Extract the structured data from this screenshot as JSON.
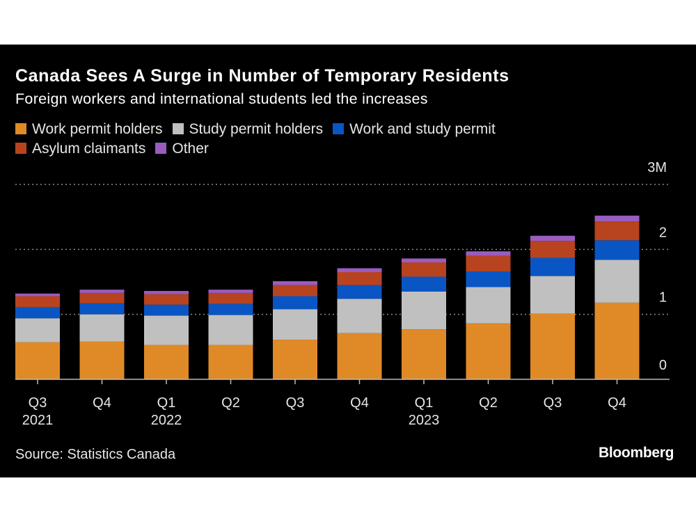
{
  "chart_data": {
    "type": "bar",
    "stacked": true,
    "title": "Canada Sees A Surge in Number of Temporary Residents",
    "subtitle": "Foreign workers and international students led the increases",
    "categories": [
      "Q3 2021",
      "Q4 2021",
      "Q1 2022",
      "Q2 2022",
      "Q3 2022",
      "Q4 2022",
      "Q1 2023",
      "Q2 2023",
      "Q3 2023",
      "Q4 2023"
    ],
    "x_tick_labels": [
      {
        "top": "Q3",
        "bottom": "2021"
      },
      {
        "top": "Q4",
        "bottom": ""
      },
      {
        "top": "Q1",
        "bottom": "2022"
      },
      {
        "top": "Q2",
        "bottom": ""
      },
      {
        "top": "Q3",
        "bottom": ""
      },
      {
        "top": "Q4",
        "bottom": ""
      },
      {
        "top": "Q1",
        "bottom": "2023"
      },
      {
        "top": "Q2",
        "bottom": ""
      },
      {
        "top": "Q3",
        "bottom": ""
      },
      {
        "top": "Q4",
        "bottom": ""
      }
    ],
    "series": [
      {
        "name": "Work permit holders",
        "color": "#df8a26",
        "values": [
          0.57,
          0.58,
          0.53,
          0.53,
          0.61,
          0.71,
          0.77,
          0.86,
          1.01,
          1.18
        ]
      },
      {
        "name": "Study permit holders",
        "color": "#c0c0c0",
        "values": [
          0.37,
          0.42,
          0.45,
          0.46,
          0.47,
          0.53,
          0.58,
          0.56,
          0.58,
          0.66
        ]
      },
      {
        "name": "Work and study permit",
        "color": "#0a55c4",
        "values": [
          0.17,
          0.17,
          0.17,
          0.17,
          0.2,
          0.21,
          0.23,
          0.24,
          0.28,
          0.3
        ]
      },
      {
        "name": "Asylum claimants",
        "color": "#b8431f",
        "values": [
          0.17,
          0.16,
          0.16,
          0.17,
          0.17,
          0.2,
          0.22,
          0.24,
          0.26,
          0.29
        ]
      },
      {
        "name": "Other",
        "color": "#9b5cc0",
        "values": [
          0.04,
          0.05,
          0.05,
          0.05,
          0.06,
          0.06,
          0.06,
          0.07,
          0.08,
          0.09
        ]
      }
    ],
    "ylabel": "",
    "units": "millions",
    "ylim": [
      0,
      3
    ],
    "y_ticks": [
      {
        "value": 0,
        "label": "0"
      },
      {
        "value": 1,
        "label": "1"
      },
      {
        "value": 2,
        "label": "2"
      },
      {
        "value": 3,
        "label": "3M"
      }
    ],
    "grid": true,
    "legend_placement": "top-left",
    "source": "Source: Statistics Canada"
  },
  "branding": {
    "logo": "Bloomberg"
  }
}
